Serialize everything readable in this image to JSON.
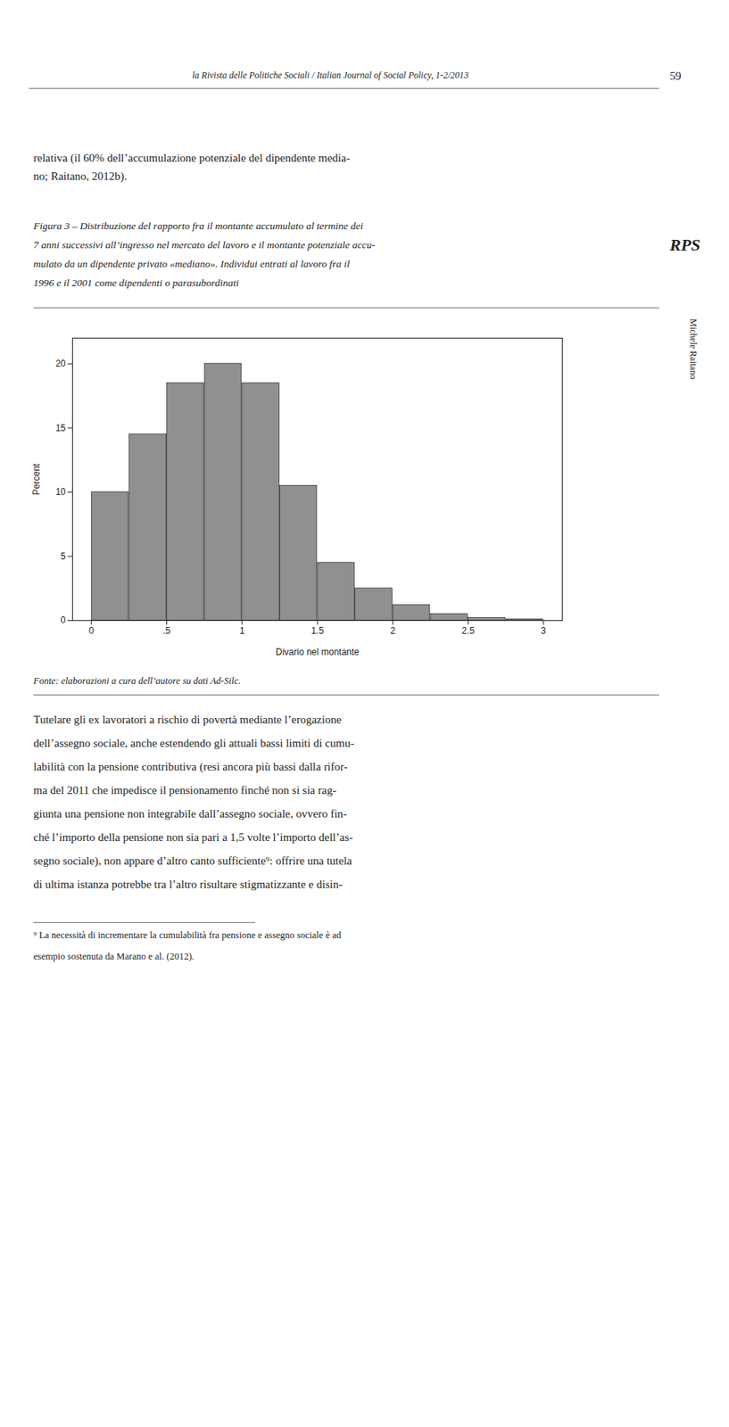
{
  "chart_data": {
    "type": "histogram",
    "annotations": [
      "la Rivista delle Politiche Sociali / Italian Journal of Social Policy, 1-2/2013",
      "59",
      "relativa (il 60% dell’accumulazione potenziale del dipendente media-",
      "no; Raitano, 2012b).",
      "Figura 3 – Distribuzione del rapporto fra il montante accumulato al termine dei",
      "7 anni successivi all’ingresso nel mercato del lavoro e il montante potenziale accu-",
      "mulato da un dipendente privato «mediano». Individui entrati al lavoro fra il",
      "1996 e il 2001 come dipendenti o parasubordinati",
      "RPS",
      "Michele Raitano",
      "Fonte: elaborazioni a cura dell’autore su dati Ad-Silc.",
      "Tutelare gli ex lavoratori a rischio di povertà mediante l’erogazione",
      "dell’assegno sociale, anche estendendo gli attuali bassi limiti di cumu-",
      "labilità con la pensione contributiva (resi ancora più bassi dalla rifor-",
      "ma del 2011 che impedisce il pensionamento finché non si sia rag-",
      "giunta una pensione non integrabile dall’assegno sociale, ovvero fin-",
      "ché l’importo della pensione non sia pari a 1,5 volte l’importo dell’as-",
      "segno sociale), non appare d’altro canto sufficiente⁹: offrire una tutela",
      "di ultima istanza potrebbe tra l’altro risultare stigmatizzante e disin-",
      "⁹ La necessità di incrementare la cumulabilità fra pensione e assegno sociale è ad",
      "esempio sostenuta da Marano e al. (2012)."
    ],
    "xlabel": "Divario nel montante",
    "ylabel": "Percent",
    "bins": [
      0.0,
      0.25,
      0.5,
      0.75,
      1.0,
      1.25,
      1.5,
      1.75,
      2.0,
      2.25,
      2.5,
      2.75,
      3.0
    ],
    "values": [
      10.0,
      14.5,
      18.5,
      20.0,
      18.5,
      10.5,
      4.5,
      2.5,
      1.2,
      0.5,
      0.2,
      0.1
    ],
    "color": "#909090",
    "xlim": [
      -0.125,
      3.125
    ],
    "xticks": [
      0,
      {
        "value": 0.5,
        "label": ".5"
      },
      1,
      1.5,
      2,
      2.5,
      3
    ],
    "ylim": [
      0,
      22
    ],
    "yticks": [
      0,
      5,
      10,
      15,
      20
    ],
    "grid": false
  }
}
